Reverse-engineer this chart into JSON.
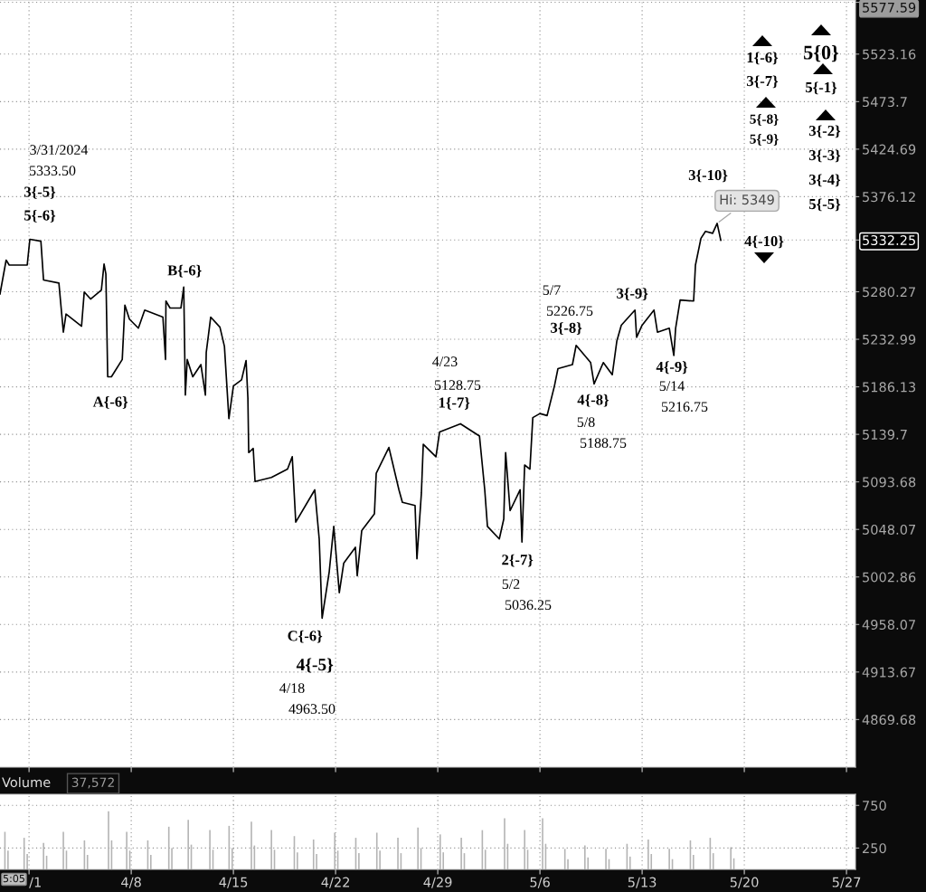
{
  "chart_data": [
    {
      "type": "line",
      "color": "#000000",
      "log": "y",
      "grid": true,
      "tick_labels": "y",
      "x": [
        "2024-03-30T00:15",
        "2024-03-30T10:20",
        "2024-03-30T15:25",
        "2024-03-31T21:00",
        "2024-04-01T01:20",
        "2024-04-01T19:30",
        "2024-04-01T23:50",
        "2024-04-03T01:05",
        "2024-04-03T08:25",
        "2024-04-03T12:50",
        "2024-04-04T14:20",
        "2024-04-04T18:45",
        "2024-04-05T05:10",
        "2024-04-05T22:55",
        "2024-04-06T03:20",
        "2024-04-06T06:20",
        "2024-04-06T09:20",
        "2024-04-06T15:25",
        "2024-04-07T09:15",
        "2024-04-07T13:35",
        "2024-04-07T21:00",
        "2024-04-08T11:45",
        "2024-04-08T22:10",
        "2024-04-10T04:05",
        "2024-04-10T08:25",
        "2024-04-10T09:05",
        "2024-04-10T15:50",
        "2024-04-11T09:40",
        "2024-04-11T14:20",
        "2024-04-11T17:00",
        "2024-04-11T20:05",
        "2024-04-12T05:10",
        "2024-04-12T18:35",
        "2024-04-13T02:00",
        "2024-04-13T03:20",
        "2024-04-13T10:40",
        "2024-04-14T01:50",
        "2024-04-14T09:15",
        "2024-04-14T16:35",
        "2024-04-15T00:00",
        "2024-04-15T13:25",
        "2024-04-15T20:50",
        "2024-04-15T23:50",
        "2024-04-16T01:10",
        "2024-04-16T08:35",
        "2024-04-16T11:35",
        "2024-04-17T14:30",
        "2024-04-18T17:00",
        "2024-04-19T00:45",
        "2024-04-19T06:30",
        "2024-04-20T13:45",
        "2024-04-20T21:05",
        "2024-04-21T01:50",
        "2024-04-21T13:35",
        "2024-04-21T21:00",
        "2024-04-22T06:05",
        "2024-04-22T13:25",
        "2024-04-23T08:35",
        "2024-04-23T11:35",
        "2024-04-23T19:00",
        "2024-04-24T15:50",
        "2024-04-24T18:50",
        "2024-04-25T15:40",
        "2024-04-26T08:10",
        "2024-04-26T13:50",
        "2024-04-27T10:40",
        "2024-04-27T13:45",
        "2024-04-27T21:05",
        "2024-04-28T00:10",
        "2024-04-28T21:00",
        "2024-04-29T03:00",
        "2024-04-30T13:20",
        "2024-05-01T20:35",
        "2024-05-02T05:15",
        "2024-05-02T09:40",
        "2024-05-03T05:10",
        "2024-05-03T12:30",
        "2024-05-03T15:35",
        "2024-05-03T22:55",
        "2024-05-04T15:25",
        "2024-05-04T18:25",
        "2024-05-04T22:50",
        "2024-05-05T07:30",
        "2024-05-05T12:15",
        "2024-05-06T00:00",
        "2024-05-06T11:45",
        "2024-05-06T23:50",
        "2024-05-07T05:35",
        "2024-05-08T05:25",
        "2024-05-08T11:30",
        "2024-05-09T11:20",
        "2024-05-09T17:00",
        "2024-05-10T08:10",
        "2024-05-10T22:55",
        "2024-05-11T06:20",
        "2024-05-11T13:45",
        "2024-05-12T06:10",
        "2024-05-12T12:15",
        "2024-05-12T14:55",
        "2024-05-13T00:00",
        "2024-05-13T19:30",
        "2024-05-14T01:10",
        "2024-05-14T20:40",
        "2024-05-15T04:05",
        "2024-05-15T07:05",
        "2024-05-15T14:30",
        "2024-05-16T12:40",
        "2024-05-16T15:40",
        "2024-05-17T00:45",
        "2024-05-17T08:10",
        "2024-05-17T19:55",
        "2024-05-18T03:20",
        "2024-05-18T09:20"
      ],
      "values": [
        5278,
        5312,
        5307,
        5307,
        5333,
        5331,
        5292,
        5289,
        5240,
        5258,
        5246,
        5280,
        5273,
        5282,
        5308,
        5298,
        5196,
        5196,
        5213,
        5267,
        5253,
        5244,
        5262,
        5255,
        5213,
        5271,
        5264,
        5264,
        5285,
        5178,
        5213,
        5196,
        5208,
        5178,
        5220,
        5255,
        5245,
        5226,
        5155,
        5187,
        5193,
        5212,
        5175,
        5122,
        5126,
        5094,
        5098,
        5106,
        5118,
        5055,
        5086,
        5039,
        4964,
        5008,
        5051,
        4988,
        5016,
        5031,
        5004,
        5047,
        5063,
        5102,
        5127,
        5086,
        5074,
        5071,
        5020,
        5083,
        5130,
        5118,
        5142,
        5150,
        5138,
        5086,
        5051,
        5039,
        5058,
        5122,
        5066,
        5086,
        5036,
        5110,
        5106,
        5156,
        5160,
        5158,
        5187,
        5204,
        5208,
        5227,
        5210,
        5189,
        5210,
        5198,
        5231,
        5247,
        5258,
        5262,
        5235,
        5247,
        5262,
        5240,
        5244,
        5217,
        5244,
        5272,
        5271,
        5307,
        5334,
        5341,
        5339,
        5349,
        5332
      ],
      "xlim": [
        "2024-03-30T00:15",
        "2024-05-27T14:45"
      ],
      "xticks": [
        {
          "value": "2024-04-01",
          "label": null
        },
        {
          "value": "2024-04-08",
          "label": null
        },
        {
          "value": "2024-04-15",
          "label": null
        },
        {
          "value": "2024-04-22",
          "label": null
        },
        {
          "value": "2024-04-29",
          "label": null
        },
        {
          "value": "2024-05-06",
          "label": null
        },
        {
          "value": "2024-05-13",
          "label": null
        },
        {
          "value": "2024-05-20",
          "label": null
        },
        {
          "value": "2024-05-27",
          "label": null
        }
      ],
      "ylim": [
        4826,
        5580
      ],
      "yticks": [
        5577.59,
        5523.16,
        5473.7,
        5424.69,
        5376.12,
        5332.25,
        5280.27,
        5232.99,
        5186.13,
        5139.7,
        5093.68,
        5048.07,
        5002.86,
        4958.07,
        4913.67,
        4869.68
      ],
      "annotations": [
        "3/31/2024",
        "5333.50",
        {
          "text": "3{-5}",
          "x": "2024-04-01T01:20",
          "y": 5333
        },
        {
          "text": "5{-6}",
          "x": "2024-04-01T01:20",
          "y": 5333
        },
        {
          "text": "A{-6}",
          "x": "2024-04-06T15:25",
          "y": 5196
        },
        {
          "text": "B{-6}",
          "x": "2024-04-11T14:20",
          "y": 5285
        },
        {
          "text": "C{-6}",
          "x": "2024-04-21T01:50",
          "y": 4964
        },
        {
          "text": "4{-5}",
          "x": "2024-04-21T01:50",
          "y": 4964
        },
        "4/18",
        "4963.50",
        "4/23",
        "5128.75",
        {
          "text": "1{-7}",
          "x": "2024-04-30T13:20",
          "y": 5150
        },
        {
          "text": "2{-7}",
          "x": "2024-05-04T18:25",
          "y": 5036
        },
        "5/2",
        "5036.25",
        "5/7",
        "5226.75",
        {
          "text": "3{-8}",
          "x": "2024-05-08T11:30",
          "y": 5227
        },
        {
          "text": "4{-8}",
          "x": "2024-05-09T17:00",
          "y": 5189
        },
        "5/8",
        "5188.75",
        {
          "text": "3{-9}",
          "x": "2024-05-12T12:15",
          "y": 5262
        },
        {
          "text": "4{-9}",
          "x": "2024-05-15T04:05",
          "y": 5217
        },
        "5/14",
        "5216.75",
        {
          "text": "3{-10}",
          "x": "2024-05-18T03:20",
          "y": 5349
        },
        {
          "text": "Hi: 5349",
          "x": "2024-05-18T03:20",
          "y": 5349
        },
        "4{-10}",
        "1{-6}",
        "3{-7}",
        "5{-8}",
        "5{-9}",
        "5{0}",
        "5{-1}",
        "3{-2}",
        "3{-3}",
        "3{-4}",
        "5{-5}"
      ]
    },
    {
      "type": "bar",
      "color": "#b4b4b4",
      "grid": true,
      "title": "Volume",
      "annotations": [
        "37,572",
        "5:05"
      ],
      "x": [
        "2024-03-30T08:20",
        "2024-03-30T13:25",
        "2024-03-31T15:55",
        "2024-03-31T21:00",
        "2024-04-01T23:50",
        "2024-04-02T04:55",
        "2024-04-03T08:25",
        "2024-04-03T13:30",
        "2024-04-04T19:05",
        "2024-04-05T00:05",
        "2024-04-06T10:40",
        "2024-04-06T15:45",
        "2024-04-07T16:35",
        "2024-04-07T21:40",
        "2024-04-09T03:15",
        "2024-04-09T08:15",
        "2024-04-10T13:50",
        "2024-04-10T18:50",
        "2024-04-11T21:45",
        "2024-04-12T02:45",
        "2024-04-13T09:20",
        "2024-04-13T14:25",
        "2024-04-14T16:55",
        "2024-04-14T22:00",
        "2024-04-16T05:35",
        "2024-04-16T10:35",
        "2024-04-17T14:30",
        "2024-04-17T19:30",
        "2024-04-19T04:10",
        "2024-04-19T09:10",
        "2024-04-20T11:45",
        "2024-04-20T16:45",
        "2024-04-21T22:40",
        "2024-04-22T03:40",
        "2024-04-23T09:15",
        "2024-04-23T14:20",
        "2024-04-24T19:50",
        "2024-04-25T00:55",
        "2024-04-26T06:30",
        "2024-04-26T11:30",
        "2024-04-27T15:25",
        "2024-04-27T20:25",
        "2024-04-29T04:00",
        "2024-04-29T09:05",
        "2024-04-30T14:40",
        "2024-04-30T19:40",
        "2024-05-02T01:15",
        "2024-05-02T06:15",
        "2024-05-03T13:50",
        "2024-05-03T18:55",
        "2024-05-04T22:50",
        "2024-05-05T03:50",
        "2024-05-06T04:20",
        "2024-05-06T09:25",
        "2024-05-07T17:00",
        "2024-05-07T22:00",
        "2024-05-09T01:55",
        "2024-05-09T07:00",
        "2024-05-10T12:30",
        "2024-05-10T17:35",
        "2024-05-11T23:10",
        "2024-05-12T04:10",
        "2024-05-13T10:05",
        "2024-05-13T15:05",
        "2024-05-14T20:40",
        "2024-05-15T01:45",
        "2024-05-16T07:20",
        "2024-05-16T12:20",
        "2024-05-17T15:55",
        "2024-05-17T20:55",
        "2024-05-19T01:50",
        "2024-05-19T06:50"
      ],
      "values": [
        440,
        220,
        370,
        180,
        310,
        160,
        440,
        220,
        340,
        170,
        680,
        340,
        440,
        220,
        340,
        170,
        500,
        250,
        580,
        290,
        460,
        230,
        510,
        250,
        560,
        280,
        460,
        230,
        390,
        200,
        350,
        180,
        430,
        220,
        370,
        190,
        430,
        220,
        370,
        190,
        490,
        250,
        410,
        200,
        370,
        190,
        460,
        230,
        600,
        300,
        460,
        230,
        600,
        300,
        240,
        120,
        280,
        140,
        240,
        120,
        300,
        150,
        350,
        180,
        240,
        120,
        340,
        170,
        370,
        190,
        260,
        130
      ],
      "xlim": [
        "2024-03-30T00:15",
        "2024-05-27T14:45"
      ],
      "xticks": [
        {
          "value": "2024-04-01",
          "label": "/1"
        },
        {
          "value": "2024-04-08",
          "label": "4/8"
        },
        {
          "value": "2024-04-15",
          "label": "4/15"
        },
        {
          "value": "2024-04-22",
          "label": "4/22"
        },
        {
          "value": "2024-04-29",
          "label": "4/29"
        },
        {
          "value": "2024-05-06",
          "label": "5/6"
        },
        {
          "value": "2024-05-13",
          "label": "5/13"
        },
        {
          "value": "2024-05-20",
          "label": "5/20"
        },
        {
          "value": "2024-05-27",
          "label": "5/27"
        }
      ],
      "ylim": [
        0,
        880
      ],
      "yticks": [
        250,
        750
      ]
    }
  ]
}
